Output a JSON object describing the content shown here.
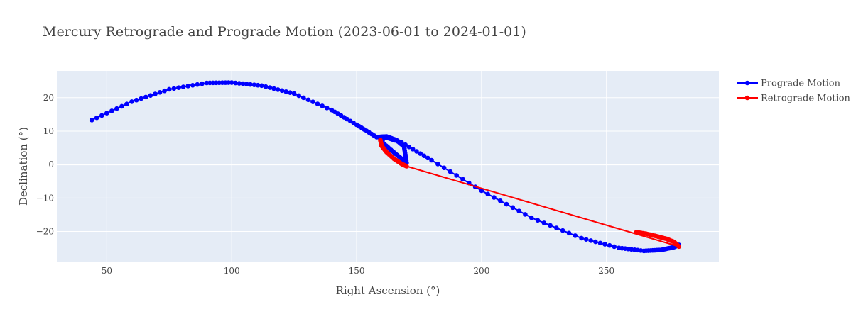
{
  "chart_data": {
    "type": "scatter",
    "title": "Mercury Retrograde and Prograde Motion (2023-06-01 to 2024-01-01)",
    "xlabel": "Right Ascension (°)",
    "ylabel": "Declination (°)",
    "xlim": [
      30,
      295
    ],
    "ylim": [
      -29,
      28
    ],
    "xticks": [
      50,
      100,
      150,
      200,
      250
    ],
    "yticks": [
      -20,
      -10,
      0,
      10,
      20
    ],
    "grid": true,
    "legend_position": "top-right",
    "series": [
      {
        "name": "Prograde Motion",
        "color": "#0000ff",
        "mode": "lines+markers",
        "x": [
          44,
          60,
          75,
          90,
          100,
          112,
          125,
          140,
          150,
          158,
          162,
          166,
          169,
          170,
          165,
          160,
          161,
          168,
          180,
          200,
          220,
          240,
          255,
          265,
          272,
          277,
          279
        ],
        "y": [
          13.3,
          18.8,
          22.5,
          24.4,
          24.5,
          23.6,
          21.2,
          16.3,
          11.9,
          8.2,
          8.4,
          7.3,
          5.4,
          0.5,
          3.6,
          6.8,
          8.3,
          6.6,
          1.3,
          -7.8,
          -15.9,
          -22.0,
          -24.9,
          -25.8,
          -25.5,
          -24.7,
          -24.0
        ]
      },
      {
        "name": "Retrograde Motion",
        "color": "#ff0000",
        "mode": "lines+markers",
        "x": [
          159.5,
          160,
          162,
          165,
          168,
          170,
          279,
          277,
          274,
          270,
          266,
          262
        ],
        "y": [
          7.3,
          5.6,
          3.7,
          1.7,
          0.2,
          -0.5,
          -24.5,
          -23.1,
          -22.2,
          -21.4,
          -20.7,
          -20.2
        ]
      }
    ]
  }
}
